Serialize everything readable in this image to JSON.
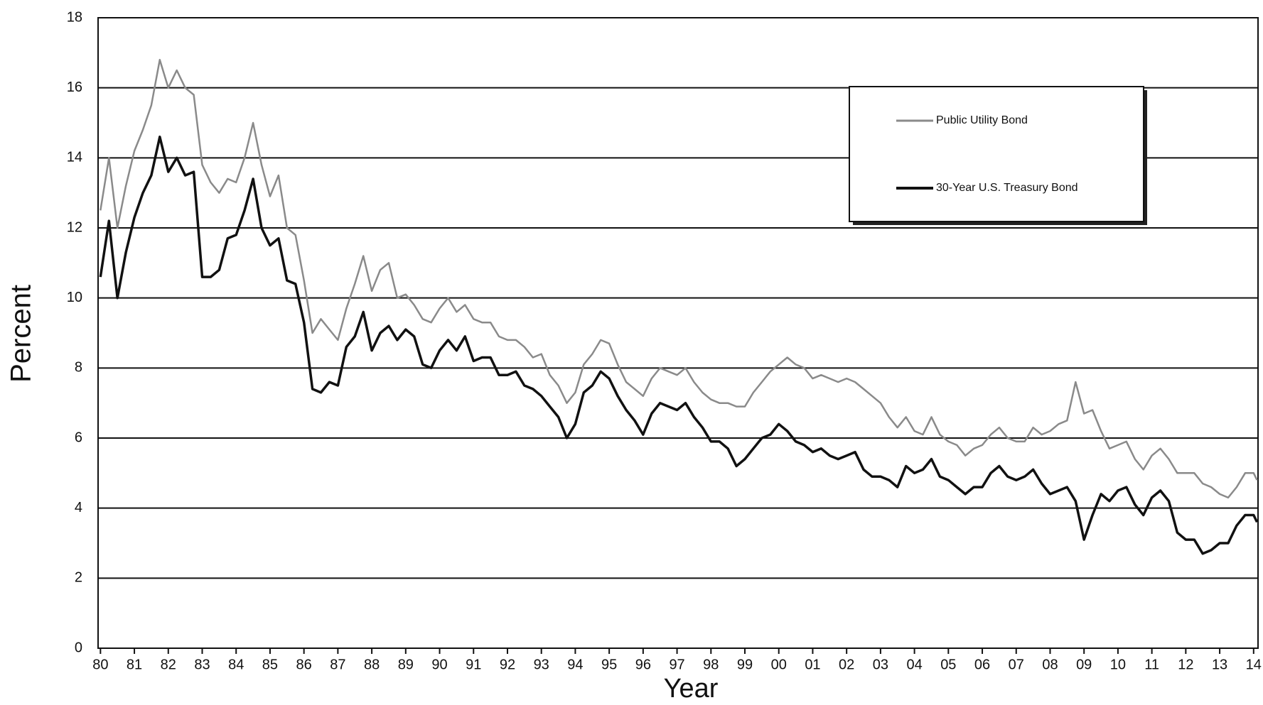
{
  "chart_data": {
    "type": "line",
    "xlabel": "Year",
    "ylabel": "Percent",
    "x": [
      1980,
      1980.25,
      1980.5,
      1980.75,
      1981,
      1981.25,
      1981.5,
      1981.75,
      1982,
      1982.25,
      1982.5,
      1982.75,
      1983,
      1983.25,
      1983.5,
      1983.75,
      1984,
      1984.25,
      1984.5,
      1984.75,
      1985,
      1985.25,
      1985.5,
      1985.75,
      1986,
      1986.25,
      1986.5,
      1986.75,
      1987,
      1987.25,
      1987.5,
      1987.75,
      1988,
      1988.25,
      1988.5,
      1988.75,
      1989,
      1989.25,
      1989.5,
      1989.75,
      1990,
      1990.25,
      1990.5,
      1990.75,
      1991,
      1991.25,
      1991.5,
      1991.75,
      1992,
      1992.25,
      1992.5,
      1992.75,
      1993,
      1993.25,
      1993.5,
      1993.75,
      1994,
      1994.25,
      1994.5,
      1994.75,
      1995,
      1995.25,
      1995.5,
      1995.75,
      1996,
      1996.25,
      1996.5,
      1996.75,
      1997,
      1997.25,
      1997.5,
      1997.75,
      1998,
      1998.25,
      1998.5,
      1998.75,
      1999,
      1999.25,
      1999.5,
      1999.75,
      2000,
      2000.25,
      2000.5,
      2000.75,
      2001,
      2001.25,
      2001.5,
      2001.75,
      2002,
      2002.25,
      2002.5,
      2002.75,
      2003,
      2003.25,
      2003.5,
      2003.75,
      2004,
      2004.25,
      2004.5,
      2004.75,
      2005,
      2005.25,
      2005.5,
      2005.75,
      2006,
      2006.25,
      2006.5,
      2006.75,
      2007,
      2007.25,
      2007.5,
      2007.75,
      2008,
      2008.25,
      2008.5,
      2008.75,
      2009,
      2009.25,
      2009.5,
      2009.75,
      2010,
      2010.25,
      2010.5,
      2010.75,
      2011,
      2011.25,
      2011.5,
      2011.75,
      2012,
      2012.25,
      2012.5,
      2012.75,
      2013,
      2013.25,
      2013.5,
      2013.75,
      2014,
      2014.1
    ],
    "series": [
      {
        "name": "Public Utility Bond",
        "color": "#8a8a8a",
        "values": [
          12.5,
          14.0,
          12.0,
          13.2,
          14.2,
          14.8,
          15.5,
          16.8,
          16.0,
          16.5,
          16.0,
          15.8,
          13.8,
          13.3,
          13.0,
          13.4,
          13.3,
          14.0,
          15.0,
          13.8,
          12.9,
          13.5,
          12.0,
          11.8,
          10.5,
          9.0,
          9.4,
          9.1,
          8.8,
          9.7,
          10.4,
          11.2,
          10.2,
          10.8,
          11.0,
          10.0,
          10.1,
          9.8,
          9.4,
          9.3,
          9.7,
          10.0,
          9.6,
          9.8,
          9.4,
          9.3,
          9.3,
          8.9,
          8.8,
          8.8,
          8.6,
          8.3,
          8.4,
          7.8,
          7.5,
          7.0,
          7.3,
          8.1,
          8.4,
          8.8,
          8.7,
          8.1,
          7.6,
          7.4,
          7.2,
          7.7,
          8.0,
          7.9,
          7.8,
          8.0,
          7.6,
          7.3,
          7.1,
          7.0,
          7.0,
          6.9,
          6.9,
          7.3,
          7.6,
          7.9,
          8.1,
          8.3,
          8.1,
          8.0,
          7.7,
          7.8,
          7.7,
          7.6,
          7.7,
          7.6,
          7.4,
          7.2,
          7.0,
          6.6,
          6.3,
          6.6,
          6.2,
          6.1,
          6.6,
          6.1,
          5.9,
          5.8,
          5.5,
          5.7,
          5.8,
          6.1,
          6.3,
          6.0,
          5.9,
          5.9,
          6.3,
          6.1,
          6.2,
          6.4,
          6.5,
          7.6,
          6.7,
          6.8,
          6.2,
          5.7,
          5.8,
          5.9,
          5.4,
          5.1,
          5.5,
          5.7,
          5.4,
          5.0,
          5.0,
          5.0,
          4.7,
          4.6,
          4.4,
          4.3,
          4.6,
          5.0,
          5.0,
          4.8
        ]
      },
      {
        "name": "30-Year U.S. Treasury Bond",
        "color": "#111111",
        "values": [
          10.6,
          12.2,
          10.0,
          11.3,
          12.3,
          13.0,
          13.5,
          14.6,
          13.6,
          14.0,
          13.5,
          13.6,
          10.6,
          10.6,
          10.8,
          11.7,
          11.8,
          12.5,
          13.4,
          12.0,
          11.5,
          11.7,
          10.5,
          10.4,
          9.3,
          7.4,
          7.3,
          7.6,
          7.5,
          8.6,
          8.9,
          9.6,
          8.5,
          9.0,
          9.2,
          8.8,
          9.1,
          8.9,
          8.1,
          8.0,
          8.5,
          8.8,
          8.5,
          8.9,
          8.2,
          8.3,
          8.3,
          7.8,
          7.8,
          7.9,
          7.5,
          7.4,
          7.2,
          6.9,
          6.6,
          6.0,
          6.4,
          7.3,
          7.5,
          7.9,
          7.7,
          7.2,
          6.8,
          6.5,
          6.1,
          6.7,
          7.0,
          6.9,
          6.8,
          7.0,
          6.6,
          6.3,
          5.9,
          5.9,
          5.7,
          5.2,
          5.4,
          5.7,
          6.0,
          6.1,
          6.4,
          6.2,
          5.9,
          5.8,
          5.6,
          5.7,
          5.5,
          5.4,
          5.5,
          5.6,
          5.1,
          4.9,
          4.9,
          4.8,
          4.6,
          5.2,
          5.0,
          5.1,
          5.4,
          4.9,
          4.8,
          4.6,
          4.4,
          4.6,
          4.6,
          5.0,
          5.2,
          4.9,
          4.8,
          4.9,
          5.1,
          4.7,
          4.4,
          4.5,
          4.6,
          4.2,
          3.1,
          3.8,
          4.4,
          4.2,
          4.5,
          4.6,
          4.1,
          3.8,
          4.3,
          4.5,
          4.2,
          3.3,
          3.1,
          3.1,
          2.7,
          2.8,
          3.0,
          3.0,
          3.5,
          3.8,
          3.8,
          3.6
        ]
      }
    ],
    "xlim": [
      1979.93,
      2014.13
    ],
    "xticks": [
      {
        "value": 1980,
        "label": "80"
      },
      {
        "value": 1981,
        "label": "81"
      },
      {
        "value": 1982,
        "label": "82"
      },
      {
        "value": 1983,
        "label": "83"
      },
      {
        "value": 1984,
        "label": "84"
      },
      {
        "value": 1985,
        "label": "85"
      },
      {
        "value": 1986,
        "label": "86"
      },
      {
        "value": 1987,
        "label": "87"
      },
      {
        "value": 1988,
        "label": "88"
      },
      {
        "value": 1989,
        "label": "89"
      },
      {
        "value": 1990,
        "label": "90"
      },
      {
        "value": 1991,
        "label": "91"
      },
      {
        "value": 1992,
        "label": "92"
      },
      {
        "value": 1993,
        "label": "93"
      },
      {
        "value": 1994,
        "label": "94"
      },
      {
        "value": 1995,
        "label": "95"
      },
      {
        "value": 1996,
        "label": "96"
      },
      {
        "value": 1997,
        "label": "97"
      },
      {
        "value": 1998,
        "label": "98"
      },
      {
        "value": 1999,
        "label": "99"
      },
      {
        "value": 2000,
        "label": "00"
      },
      {
        "value": 2001,
        "label": "01"
      },
      {
        "value": 2002,
        "label": "02"
      },
      {
        "value": 2003,
        "label": "03"
      },
      {
        "value": 2004,
        "label": "04"
      },
      {
        "value": 2005,
        "label": "05"
      },
      {
        "value": 2006,
        "label": "06"
      },
      {
        "value": 2007,
        "label": "07"
      },
      {
        "value": 2008,
        "label": "08"
      },
      {
        "value": 2009,
        "label": "09"
      },
      {
        "value": 2010,
        "label": "10"
      },
      {
        "value": 2011,
        "label": "11"
      },
      {
        "value": 2012,
        "label": "12"
      },
      {
        "value": 2013,
        "label": "13"
      },
      {
        "value": 2014,
        "label": "14"
      }
    ],
    "ylim": [
      0,
      18
    ],
    "yticks": [
      0,
      2,
      4,
      6,
      8,
      10,
      12,
      14,
      16,
      18
    ],
    "grid": true,
    "legend": "upper right"
  }
}
